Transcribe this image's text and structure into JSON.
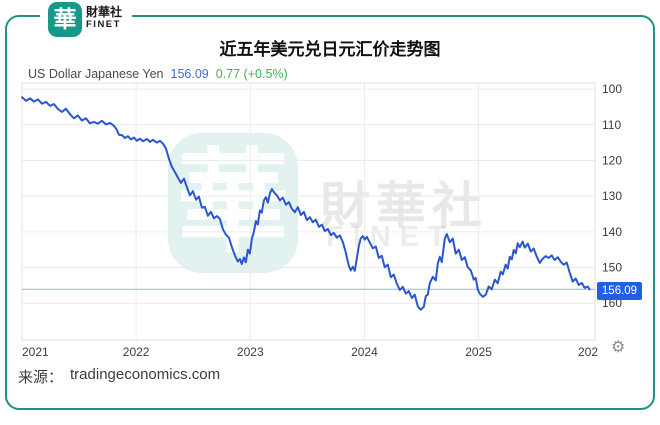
{
  "brand": {
    "logo_char": "華",
    "name_zh": "財華社",
    "name_en": "FINET"
  },
  "title": "近五年美元兑日元汇价走势图",
  "legend": {
    "instrument": "US Dollar Japanese Yen",
    "price": "156.09",
    "change": "0.77 (+0.5%)"
  },
  "watermark": {
    "logo_char": "華",
    "text_zh": "財華社",
    "text_en": "FINET"
  },
  "price_tag": {
    "label": "156.09"
  },
  "icons": {
    "gear": "⚙"
  },
  "source": {
    "prefix": "来源：",
    "text": "tradingeconomics.com"
  },
  "colors": {
    "brand_teal": "#17998a",
    "frame_teal": "#239083",
    "line_blue": "#2a56cf",
    "price_box_blue": "#2160e4",
    "price_text_blue": "#3f6ad8",
    "change_green": "#4caf50",
    "grid": "#ececec",
    "plot_border": "#e0e0e0",
    "axis_text": "#3c3c3c",
    "price_hline": "#9fb4d8"
  },
  "chart_data": {
    "type": "line",
    "title": "近五年美元兑日元汇价走势图",
    "xlabel": "",
    "ylabel": "",
    "grid": true,
    "y_inverted_axis": true,
    "xlim": [
      2021,
      2026.02
    ],
    "ylim": [
      98.3,
      170.3
    ],
    "x_ticks": [
      {
        "t": 2021,
        "label": "2021",
        "anchor": "start"
      },
      {
        "t": 2022,
        "label": "2022",
        "anchor": "middle"
      },
      {
        "t": 2023,
        "label": "2023",
        "anchor": "middle"
      },
      {
        "t": 2024,
        "label": "2024",
        "anchor": "middle"
      },
      {
        "t": 2025,
        "label": "2025",
        "anchor": "middle"
      },
      {
        "t": 2026.02,
        "label": "202",
        "anchor": "end"
      }
    ],
    "y_ticks": [
      {
        "v": 100,
        "label": "100"
      },
      {
        "v": 110,
        "label": "110"
      },
      {
        "v": 120,
        "label": "120"
      },
      {
        "v": 130,
        "label": "130"
      },
      {
        "v": 140,
        "label": "140"
      },
      {
        "v": 150,
        "label": "150"
      },
      {
        "v": 160,
        "label": "160"
      }
    ],
    "last_price": 156.09,
    "last_price_label": "156.09",
    "series": [
      {
        "name": "US Dollar Japanese Yen",
        "points": [
          [
            2021.0,
            102.3
          ],
          [
            2021.035,
            103.3
          ],
          [
            2021.07,
            102.6
          ],
          [
            2021.105,
            103.5
          ],
          [
            2021.14,
            102.9
          ],
          [
            2021.175,
            104.1
          ],
          [
            2021.21,
            103.6
          ],
          [
            2021.245,
            104.7
          ],
          [
            2021.28,
            104.2
          ],
          [
            2021.315,
            105.6
          ],
          [
            2021.35,
            106.4
          ],
          [
            2021.385,
            105.5
          ],
          [
            2021.42,
            107.0
          ],
          [
            2021.455,
            108.2
          ],
          [
            2021.49,
            107.4
          ],
          [
            2021.525,
            108.8
          ],
          [
            2021.56,
            108.2
          ],
          [
            2021.595,
            109.6
          ],
          [
            2021.63,
            109.2
          ],
          [
            2021.665,
            109.7
          ],
          [
            2021.7,
            108.9
          ],
          [
            2021.736,
            109.9
          ],
          [
            2021.771,
            109.5
          ],
          [
            2021.806,
            110.3
          ],
          [
            2021.832,
            111.5
          ],
          [
            2021.849,
            112.8
          ],
          [
            2021.876,
            112.9
          ],
          [
            2021.902,
            113.7
          ],
          [
            2021.928,
            113.2
          ],
          [
            2021.954,
            114.1
          ],
          [
            2021.981,
            113.6
          ],
          [
            2022.007,
            114.5
          ],
          [
            2022.033,
            113.9
          ],
          [
            2022.06,
            114.6
          ],
          [
            2022.095,
            114.0
          ],
          [
            2022.121,
            114.8
          ],
          [
            2022.147,
            114.2
          ],
          [
            2022.182,
            115.0
          ],
          [
            2022.208,
            114.5
          ],
          [
            2022.235,
            115.3
          ],
          [
            2022.261,
            116.6
          ],
          [
            2022.287,
            119.5
          ],
          [
            2022.313,
            121.8
          ],
          [
            2022.34,
            123.3
          ],
          [
            2022.366,
            124.8
          ],
          [
            2022.392,
            126.3
          ],
          [
            2022.419,
            125.1
          ],
          [
            2022.445,
            127.5
          ],
          [
            2022.471,
            129.8
          ],
          [
            2022.497,
            128.6
          ],
          [
            2022.524,
            131.0
          ],
          [
            2022.55,
            130.1
          ],
          [
            2022.576,
            133.2
          ],
          [
            2022.602,
            133.0
          ],
          [
            2022.629,
            135.5
          ],
          [
            2022.655,
            134.4
          ],
          [
            2022.681,
            136.2
          ],
          [
            2022.708,
            135.6
          ],
          [
            2022.734,
            136.4
          ],
          [
            2022.76,
            139.3
          ],
          [
            2022.786,
            140.8
          ],
          [
            2022.813,
            141.6
          ],
          [
            2022.839,
            144.3
          ],
          [
            2022.865,
            146.6
          ],
          [
            2022.891,
            148.3
          ],
          [
            2022.909,
            147.6
          ],
          [
            2022.926,
            149.0
          ],
          [
            2022.944,
            147.2
          ],
          [
            2022.961,
            148.5
          ],
          [
            2022.979,
            145.0
          ],
          [
            2022.996,
            146.1
          ],
          [
            2023.014,
            141.9
          ],
          [
            2023.031,
            140.1
          ],
          [
            2023.049,
            137.0
          ],
          [
            2023.066,
            137.9
          ],
          [
            2023.084,
            134.0
          ],
          [
            2023.101,
            134.6
          ],
          [
            2023.119,
            131.2
          ],
          [
            2023.137,
            130.3
          ],
          [
            2023.154,
            131.8
          ],
          [
            2023.172,
            129.2
          ],
          [
            2023.189,
            128.0
          ],
          [
            2023.207,
            128.9
          ],
          [
            2023.233,
            129.8
          ],
          [
            2023.259,
            131.2
          ],
          [
            2023.285,
            130.4
          ],
          [
            2023.312,
            132.4
          ],
          [
            2023.338,
            131.7
          ],
          [
            2023.364,
            133.5
          ],
          [
            2023.39,
            134.5
          ],
          [
            2023.417,
            133.1
          ],
          [
            2023.443,
            135.3
          ],
          [
            2023.469,
            134.4
          ],
          [
            2023.496,
            136.7
          ],
          [
            2023.522,
            135.9
          ],
          [
            2023.548,
            137.3
          ],
          [
            2023.574,
            136.6
          ],
          [
            2023.601,
            138.6
          ],
          [
            2023.627,
            138.0
          ],
          [
            2023.653,
            139.8
          ],
          [
            2023.679,
            139.2
          ],
          [
            2023.706,
            140.9
          ],
          [
            2023.732,
            140.3
          ],
          [
            2023.758,
            141.6
          ],
          [
            2023.785,
            141.0
          ],
          [
            2023.811,
            142.9
          ],
          [
            2023.837,
            145.8
          ],
          [
            2023.863,
            149.5
          ],
          [
            2023.881,
            150.8
          ],
          [
            2023.898,
            149.8
          ],
          [
            2023.916,
            150.9
          ],
          [
            2023.933,
            147.5
          ],
          [
            2023.951,
            144.0
          ],
          [
            2023.968,
            141.8
          ],
          [
            2023.986,
            141.2
          ],
          [
            2024.003,
            142.2
          ],
          [
            2024.021,
            141.4
          ],
          [
            2024.047,
            143.0
          ],
          [
            2024.073,
            144.6
          ],
          [
            2024.1,
            144.1
          ],
          [
            2024.126,
            147.3
          ],
          [
            2024.152,
            146.7
          ],
          [
            2024.178,
            149.9
          ],
          [
            2024.205,
            149.2
          ],
          [
            2024.231,
            152.7
          ],
          [
            2024.257,
            152.0
          ],
          [
            2024.284,
            154.5
          ],
          [
            2024.31,
            156.3
          ],
          [
            2024.336,
            155.4
          ],
          [
            2024.362,
            157.3
          ],
          [
            2024.389,
            156.6
          ],
          [
            2024.415,
            158.5
          ],
          [
            2024.441,
            157.6
          ],
          [
            2024.468,
            160.9
          ],
          [
            2024.494,
            161.8
          ],
          [
            2024.52,
            161.0
          ],
          [
            2024.538,
            158.0
          ],
          [
            2024.555,
            157.6
          ],
          [
            2024.573,
            154.4
          ],
          [
            2024.599,
            152.6
          ],
          [
            2024.625,
            153.6
          ],
          [
            2024.643,
            148.9
          ],
          [
            2024.66,
            147.0
          ],
          [
            2024.678,
            148.5
          ],
          [
            2024.704,
            141.9
          ],
          [
            2024.722,
            140.6
          ],
          [
            2024.748,
            142.9
          ],
          [
            2024.774,
            141.9
          ],
          [
            2024.8,
            146.1
          ],
          [
            2024.827,
            145.0
          ],
          [
            2024.853,
            147.9
          ],
          [
            2024.879,
            147.1
          ],
          [
            2024.905,
            149.9
          ],
          [
            2024.932,
            150.8
          ],
          [
            2024.958,
            153.4
          ],
          [
            2024.975,
            152.9
          ],
          [
            2024.993,
            156.2
          ],
          [
            2025.01,
            157.3
          ],
          [
            2025.037,
            158.2
          ],
          [
            2025.063,
            157.6
          ],
          [
            2025.089,
            155.3
          ],
          [
            2025.115,
            156.1
          ],
          [
            2025.142,
            153.4
          ],
          [
            2025.168,
            154.4
          ],
          [
            2025.194,
            151.2
          ],
          [
            2025.212,
            151.9
          ],
          [
            2025.238,
            149.2
          ],
          [
            2025.256,
            150.3
          ],
          [
            2025.273,
            147.0
          ],
          [
            2025.291,
            147.7
          ],
          [
            2025.308,
            145.1
          ],
          [
            2025.326,
            146.0
          ],
          [
            2025.343,
            143.2
          ],
          [
            2025.361,
            144.3
          ],
          [
            2025.387,
            142.7
          ],
          [
            2025.404,
            144.4
          ],
          [
            2025.431,
            143.3
          ],
          [
            2025.457,
            145.5
          ],
          [
            2025.483,
            144.7
          ],
          [
            2025.51,
            147.0
          ],
          [
            2025.536,
            148.7
          ],
          [
            2025.562,
            147.5
          ],
          [
            2025.588,
            146.8
          ],
          [
            2025.615,
            147.3
          ],
          [
            2025.641,
            146.6
          ],
          [
            2025.667,
            147.9
          ],
          [
            2025.694,
            147.1
          ],
          [
            2025.72,
            148.4
          ],
          [
            2025.746,
            149.2
          ],
          [
            2025.772,
            148.6
          ],
          [
            2025.799,
            151.5
          ],
          [
            2025.825,
            153.9
          ],
          [
            2025.851,
            153.1
          ],
          [
            2025.877,
            154.9
          ],
          [
            2025.904,
            154.3
          ],
          [
            2025.93,
            155.7
          ],
          [
            2025.956,
            155.3
          ],
          [
            2025.973,
            156.1
          ]
        ]
      }
    ]
  }
}
